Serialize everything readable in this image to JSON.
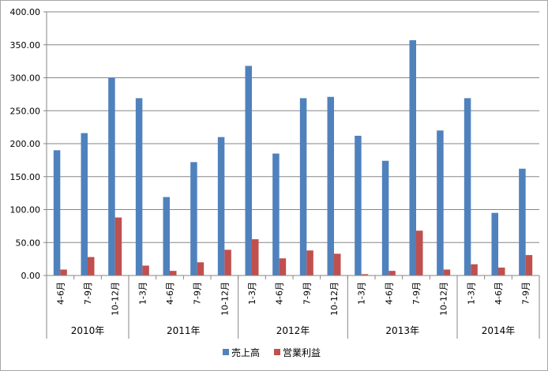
{
  "chart_data": {
    "type": "bar",
    "ylim": [
      0,
      400
    ],
    "yticks": [
      "0.00",
      "50.00",
      "100.00",
      "150.00",
      "200.00",
      "250.00",
      "300.00",
      "350.00",
      "400.00"
    ],
    "grid": true,
    "legend_position": "bottom",
    "categories": [
      "4-6月",
      "7-9月",
      "10-12月",
      "1-3月",
      "4-6月",
      "7-9月",
      "10-12月",
      "1-3月",
      "4-6月",
      "7-9月",
      "10-12月",
      "1-3月",
      "4-6月",
      "7-9月",
      "10-12月",
      "1-3月",
      "4-6月",
      "7-9月"
    ],
    "groups": [
      {
        "label": "2010年",
        "count": 3
      },
      {
        "label": "2011年",
        "count": 4
      },
      {
        "label": "2012年",
        "count": 4
      },
      {
        "label": "2013年",
        "count": 4
      },
      {
        "label": "2014年",
        "count": 3
      }
    ],
    "series": [
      {
        "name": "売上高",
        "color": "#4f81bd",
        "values": [
          190,
          216,
          300,
          269,
          119,
          172,
          210,
          318,
          185,
          269,
          271,
          212,
          174,
          357,
          220,
          269,
          95,
          162
        ]
      },
      {
        "name": "営業利益",
        "color": "#c0504d",
        "values": [
          9,
          28,
          88,
          15,
          7,
          20,
          39,
          55,
          26,
          38,
          33,
          2,
          7,
          68,
          9,
          17,
          12,
          31
        ]
      }
    ]
  }
}
